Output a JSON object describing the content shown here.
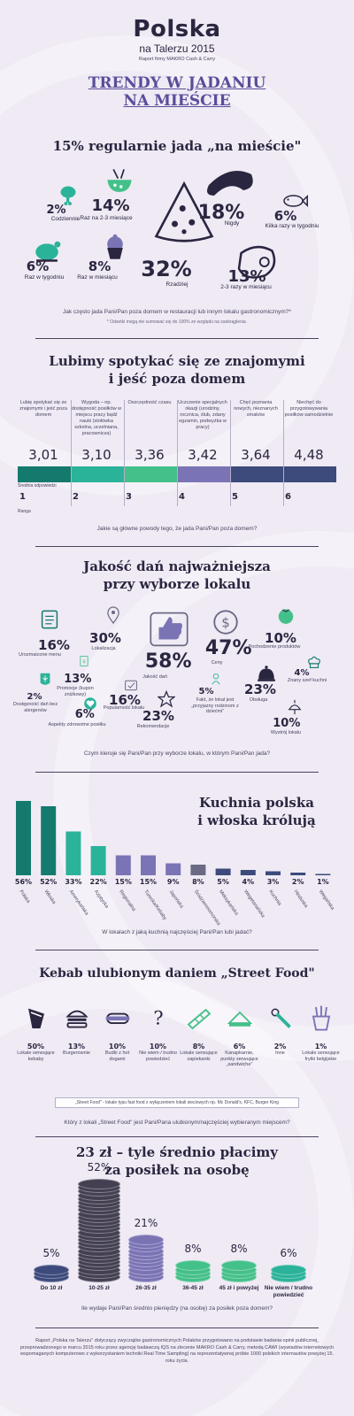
{
  "header": {
    "logo_main": "Polska",
    "logo_sub": "na Talerzu 2015",
    "logo_tiny": "Raport firmy MAKRO Cash & Carry",
    "title_line1": "TRENDY W JADANIU",
    "title_line2": "NA MIEŚCIE"
  },
  "section1": {
    "title": "15% regularnie jada „na mieście\"",
    "question": "Jak często jada Pani/Pan poza domem w restauracji lub innym lokalu gastronomicznym?*",
    "footnote": "* Odsetki mogą nie sumować się do 100% ze względu na zaokrąglenia."
  },
  "section2": {
    "title_line1": "Lubimy spotykać się ze znajomymi",
    "title_line2": "i jeść poza domem",
    "avg_label": "Średnia odpowiedzi",
    "rank_label": "Ranga",
    "question": "Jakie są główne powody tego, że jada Pani/Pan poza domem?"
  },
  "section3": {
    "title_line1": "Jakość dań najważniejsza",
    "title_line2": "przy wyborze lokalu",
    "question": "Czym kieruje się Pani/Pan przy wyborze lokalu, w którym Pani/Pan jada?"
  },
  "section4": {
    "title_line1": "Kuchnia polska",
    "title_line2": "i włoska królują",
    "question": "W lokalach z jaką kuchnią najczęściej Pani/Pan lubi jadać?"
  },
  "section5": {
    "title": "Kebab ulubionym daniem „Street Food\"",
    "definition": "„Street Food\" - lokale typu fast food z wyłączeniem lokali sieciowych np. Mc Donald's, KFC, Burger King",
    "question": "Który z lokali „Street Food\" jest Pani/Pana ulubionym/najczęściej wybieranym miejscem?"
  },
  "section6": {
    "title_line1": "23 zł – tyle średnio płacimy",
    "title_line2": "za posiłek na osobę",
    "question": "Ile wydaje Pani/Pan średnio pieniędzy (na osobę) za posiłek poza domem?"
  },
  "footer": "Raport „Polska na Talerzu\" dotyczący zwyczajów gastronomicznych Polaków przygotowano na podstawie badania opinii publicznej, przeprowadzonego w marcu 2015 roku przez agencję badawczą IQS na zlecenie MAKRO Cash & Carry, metodą CAWI (wywiadów internetowych wspomaganych komputerowo z wykorzystaniem techniki Real Time Sampling) na reprezentatywnej próbie 1000 polskich internautów powyżej 15. roku życia.",
  "colors": {
    "teal_dark": "#157a6e",
    "teal": "#2bb39a",
    "green": "#44c08a",
    "purple": "#7a74b5",
    "navy": "#3d4a7c",
    "dark": "#2b2640",
    "grey": "#6b6a85"
  },
  "chart_data": [
    {
      "type": "pie",
      "title": "15% regularnie jada „na mieście\"",
      "categories": [
        "Codziennie",
        "Raz na 2-3 miesiące",
        "Nigdy",
        "Kilka razy w tygodniu",
        "Raz w tygodniu",
        "Raz w miesiącu",
        "Rzadziej",
        "2-3 razy w miesiącu"
      ],
      "values": [
        2,
        14,
        18,
        6,
        6,
        8,
        32,
        13
      ],
      "labels": [
        "2%",
        "14%",
        "18%",
        "6%",
        "6%",
        "8%",
        "32%",
        "13%"
      ],
      "icons": [
        "chicken-leg-icon",
        "bowl-icon",
        "sausage-icon",
        "fish-icon",
        "roast-chicken-icon",
        "cupcake-icon",
        "pizza-slice-icon",
        "steak-icon"
      ]
    },
    {
      "type": "bar",
      "title": "Lubimy spotykać się ze znajomymi i jeść poza domem",
      "categories": [
        "Lubię spotykać się ze znajomymi i jeść poza domem",
        "Wygoda – np. dostępność posiłków w miejscu pracy bądź nauki (stołówka szkolna, uczelniana, pracownicza)",
        "Oszczędność czasu",
        "Uczczenie specjalnych okazji (urodziny, rocznica, ślub, zdany egzamin, podwyżka w pracy)",
        "Chęć poznania nowych, nieznanych smaków",
        "Niechęć do przygotowywania posiłków samodzielnie"
      ],
      "values": [
        3.01,
        3.1,
        3.36,
        3.42,
        3.64,
        4.48
      ],
      "value_labels": [
        "3,01",
        "3,10",
        "3,36",
        "3,42",
        "3,64",
        "4,48"
      ],
      "ranks": [
        1,
        2,
        3,
        4,
        5,
        6
      ]
    },
    {
      "type": "scatter",
      "title": "Jakość dań najważniejsza przy wyborze lokalu",
      "categories": [
        "Urozmaicone menu",
        "Lokalizacja",
        "Jakość dań",
        "Ceny",
        "Pochodzenie produktów",
        "Promocje (kupon zniżkowy)",
        "Dostępność dań bez alergenów",
        "Popularność lokalu",
        "Fakt, że lokal jest „przyjazny rodzinom z dziećmi\"",
        "Obsługa",
        "Znany szef kuchni",
        "Aspekty zdrowotne posiłku",
        "Rekomendacje",
        "Wystrój lokalu"
      ],
      "values": [
        16,
        30,
        58,
        47,
        10,
        13,
        2,
        16,
        5,
        23,
        4,
        6,
        23,
        10
      ],
      "labels": [
        "16%",
        "30%",
        "58%",
        "47%",
        "10%",
        "13%",
        "2%",
        "16%",
        "5%",
        "23%",
        "4%",
        "6%",
        "23%",
        "10%"
      ]
    },
    {
      "type": "bar",
      "title": "Kuchnia polska i włoska królują",
      "categories": [
        "Polska",
        "Włoska",
        "Amerykańska",
        "Azjatycka",
        "Regionalna",
        "Turecka/Kebaby",
        "Japońska",
        "Śródziemnomorska",
        "Meksykańska",
        "Wegetariańska",
        "Kuchnia",
        "Hinduska",
        "Wegańska"
      ],
      "values": [
        56,
        52,
        33,
        22,
        15,
        15,
        9,
        8,
        5,
        4,
        3,
        2,
        1
      ],
      "labels": [
        "56%",
        "52%",
        "33%",
        "22%",
        "15%",
        "15%",
        "9%",
        "8%",
        "5%",
        "4%",
        "3%",
        "2%",
        "1%"
      ],
      "ylim": [
        0,
        60
      ]
    },
    {
      "type": "bar",
      "title": "Kebab ulubionym daniem „Street Food\"",
      "categories": [
        "Lokale serwujące kebaby",
        "Burgerownie",
        "Budki z hot dogami",
        "Nie wiem / trudno powiedzieć",
        "Lokale serwujące zapiekanki",
        "Kanapkarnie, punkty serwujące „sandwiche\"",
        "Inne",
        "Lokale serwujące frytki belgijskie"
      ],
      "values": [
        50,
        13,
        10,
        10,
        8,
        6,
        2,
        1
      ],
      "labels": [
        "50%",
        "13%",
        "10%",
        "10%",
        "8%",
        "6%",
        "2%",
        "1%"
      ]
    },
    {
      "type": "bar",
      "title": "23 zł – tyle średnio płacimy za posiłek na osobę",
      "categories": [
        "Do 10 zł",
        "10-25 zł",
        "26-35 zł",
        "36-45 zł",
        "45 zł i powyżej",
        "Nie wiem / trudno powiedzieć"
      ],
      "values": [
        5,
        52,
        21,
        8,
        8,
        6
      ],
      "labels": [
        "5%",
        "52%",
        "21%",
        "8%",
        "8%",
        "6%"
      ]
    }
  ]
}
